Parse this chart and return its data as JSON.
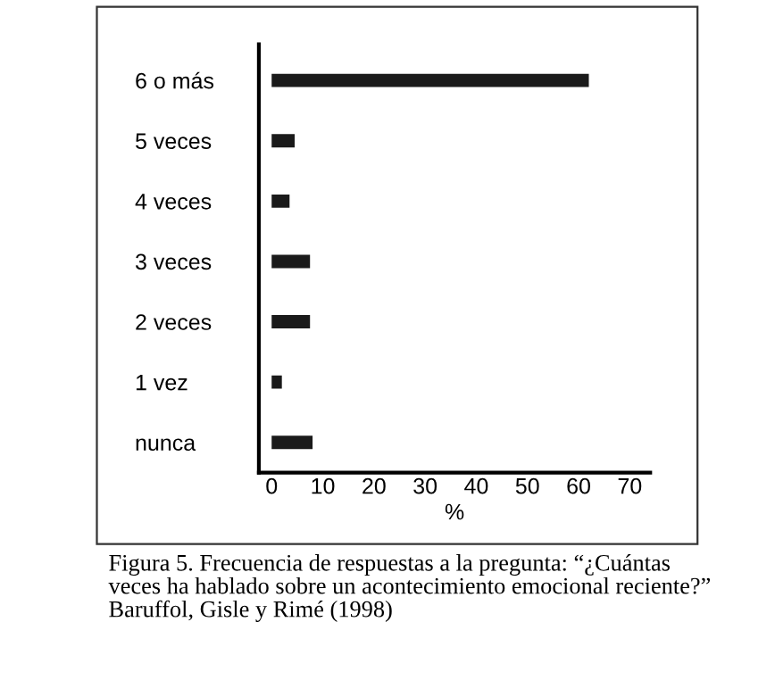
{
  "chart_data": {
    "type": "bar",
    "orientation": "horizontal",
    "xlabel": "%",
    "categories": [
      "6 o más",
      "5 veces",
      "4 veces",
      "3 veces",
      "2 veces",
      "1 vez",
      "nunca"
    ],
    "values": [
      62,
      4.5,
      3.5,
      7.5,
      7.5,
      2,
      8
    ],
    "color": "#1a1a1a",
    "xlim": [
      -2.5,
      74
    ],
    "xticks": [
      0,
      10,
      20,
      30,
      40,
      50,
      60,
      70
    ],
    "grid": false,
    "annotations": [
      "Figura 5. Frecuencia de respuestas a la pregunta: “¿Cuántas\nveces ha hablado sobre un acontecimiento emocional reciente?”\nBaruffol, Gisle y Rimé (1998)"
    ]
  }
}
